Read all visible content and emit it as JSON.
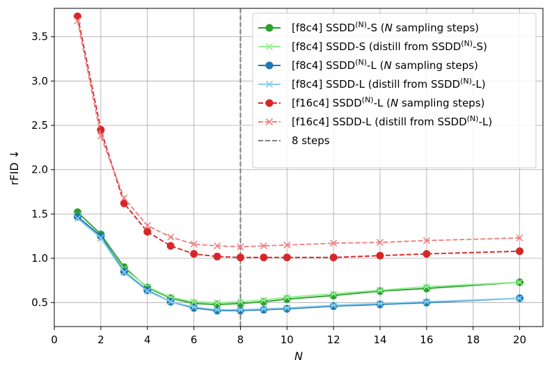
{
  "chart_data": {
    "type": "line",
    "xlabel": "N",
    "ylabel": "rFID ↓",
    "xlim": [
      0,
      21
    ],
    "ylim": [
      0.23,
      3.82
    ],
    "xticks": [
      0,
      2,
      4,
      6,
      8,
      10,
      12,
      14,
      16,
      18,
      20
    ],
    "yticks": [
      0.5,
      1.0,
      1.5,
      2.0,
      2.5,
      3.0,
      3.5
    ],
    "ytick_labels": [
      "0.5",
      "1.0",
      "1.5",
      "2.0",
      "2.5",
      "3.0",
      "3.5"
    ],
    "grid": true,
    "legend_position": "top-right",
    "vline": {
      "x": 8,
      "label": "8 steps",
      "color": "#7f7f7f"
    },
    "series": [
      {
        "id": "s1",
        "legend": {
          "prefix": "[f8c4] SSDD",
          "sup": "(N)",
          "suffix": "-S (",
          "italic": "N",
          "tail": " sampling steps)"
        },
        "color": "#2ca02c",
        "dashed": false,
        "marker": "circle",
        "x": [
          1,
          2,
          3,
          4,
          5,
          6,
          7,
          8,
          9,
          10,
          12,
          14,
          16,
          20
        ],
        "values": [
          1.52,
          1.27,
          0.9,
          0.67,
          0.55,
          0.49,
          0.48,
          0.49,
          0.51,
          0.54,
          0.58,
          0.63,
          0.66,
          0.73
        ]
      },
      {
        "id": "s2",
        "legend": {
          "prefix": "[f8c4] SSDD-S (distill from SSDD",
          "sup": "(N)",
          "suffix": "-S)",
          "italic": "",
          "tail": ""
        },
        "color": "#90ee90",
        "dashed": false,
        "marker": "x",
        "x": [
          1,
          2,
          3,
          4,
          5,
          6,
          7,
          8,
          9,
          10,
          12,
          14,
          16,
          20
        ],
        "values": [
          1.48,
          1.22,
          0.88,
          0.68,
          0.56,
          0.51,
          0.5,
          0.51,
          0.53,
          0.56,
          0.6,
          0.64,
          0.68,
          0.73
        ]
      },
      {
        "id": "s3",
        "legend": {
          "prefix": "[f8c4] SSDD",
          "sup": "(N)",
          "suffix": "-L (",
          "italic": "N",
          "tail": " sampling steps)"
        },
        "color": "#1f77b4",
        "dashed": false,
        "marker": "circle",
        "x": [
          1,
          2,
          3,
          4,
          5,
          6,
          7,
          8,
          9,
          10,
          12,
          14,
          16,
          20
        ],
        "values": [
          1.47,
          1.25,
          0.85,
          0.64,
          0.51,
          0.44,
          0.41,
          0.41,
          0.42,
          0.43,
          0.46,
          0.48,
          0.5,
          0.55
        ]
      },
      {
        "id": "s4",
        "legend": {
          "prefix": "[f8c4] SSDD-L (distill from SSDD",
          "sup": "(N)",
          "suffix": "-L)",
          "italic": "",
          "tail": ""
        },
        "color": "#87ceeb",
        "dashed": false,
        "marker": "x",
        "x": [
          1,
          2,
          3,
          4,
          5,
          6,
          7,
          8,
          9,
          10,
          12,
          14,
          16,
          20
        ],
        "values": [
          1.45,
          1.23,
          0.84,
          0.63,
          0.51,
          0.45,
          0.42,
          0.42,
          0.43,
          0.44,
          0.47,
          0.49,
          0.51,
          0.55
        ]
      },
      {
        "id": "s5",
        "legend": {
          "prefix": "[f16c4] SSDD",
          "sup": "(N)",
          "suffix": "-L (",
          "italic": "N",
          "tail": " sampling steps)"
        },
        "color": "#d62728",
        "dashed": true,
        "marker": "circle",
        "x": [
          1,
          2,
          3,
          4,
          5,
          6,
          7,
          8,
          9,
          10,
          12,
          14,
          16,
          20
        ],
        "values": [
          3.73,
          2.45,
          1.62,
          1.3,
          1.14,
          1.05,
          1.02,
          1.01,
          1.01,
          1.01,
          1.01,
          1.03,
          1.05,
          1.08
        ]
      },
      {
        "id": "s6",
        "legend": {
          "prefix": "[f16c4] SSDD-L (distill from SSDD",
          "sup": "(N)",
          "suffix": "-L)",
          "italic": "",
          "tail": ""
        },
        "color": "#f08080",
        "dashed": true,
        "marker": "x",
        "x": [
          1,
          2,
          3,
          4,
          5,
          6,
          7,
          8,
          9,
          10,
          12,
          14,
          16,
          20
        ],
        "values": [
          3.68,
          2.38,
          1.68,
          1.37,
          1.24,
          1.16,
          1.14,
          1.13,
          1.14,
          1.15,
          1.17,
          1.18,
          1.2,
          1.23
        ]
      }
    ]
  }
}
